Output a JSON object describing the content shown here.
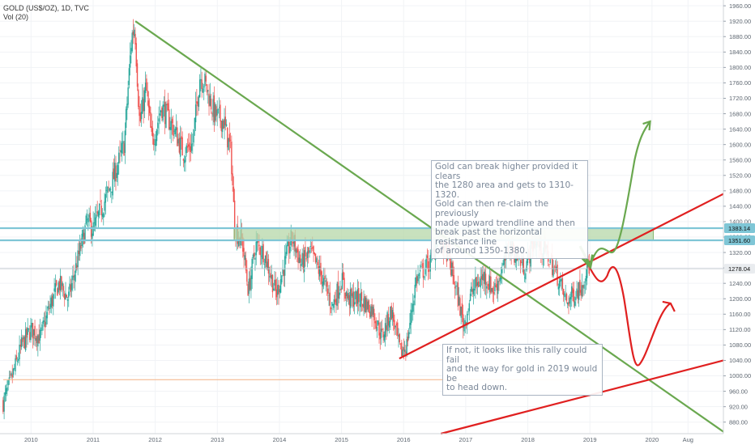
{
  "header": {
    "title": "GOLD (US$/OZ), 1D, TVC",
    "volume_label": "Vol (20)"
  },
  "chart_data": {
    "type": "candlestick",
    "title": "GOLD (US$/OZ), 1D, TVC",
    "x_ticks": [
      "2010",
      "2011",
      "2012",
      "2013",
      "2014",
      "2015",
      "2016",
      "2017",
      "2018",
      "2019",
      "2020",
      "Aug"
    ],
    "y_ticks": [
      880,
      920,
      960,
      1000,
      1040,
      1080,
      1120,
      1160,
      1200,
      1240,
      1280,
      1320,
      1360,
      1400,
      1440,
      1480,
      1520,
      1560,
      1600,
      1640,
      1680,
      1720,
      1760,
      1800,
      1840,
      1880,
      1920,
      1960
    ],
    "ylim": [
      850,
      1975
    ],
    "xlim": [
      2009.5,
      2021.15
    ],
    "price_path": [
      [
        2009.55,
        930
      ],
      [
        2009.7,
        1000
      ],
      [
        2009.85,
        1080
      ],
      [
        2010.0,
        1120
      ],
      [
        2010.15,
        1100
      ],
      [
        2010.3,
        1180
      ],
      [
        2010.45,
        1240
      ],
      [
        2010.6,
        1200
      ],
      [
        2010.75,
        1300
      ],
      [
        2010.9,
        1400
      ],
      [
        2011.0,
        1380
      ],
      [
        2011.1,
        1420
      ],
      [
        2011.3,
        1500
      ],
      [
        2011.5,
        1600
      ],
      [
        2011.62,
        1880
      ],
      [
        2011.67,
        1910
      ],
      [
        2011.75,
        1650
      ],
      [
        2011.85,
        1750
      ],
      [
        2011.95,
        1600
      ],
      [
        2012.1,
        1700
      ],
      [
        2012.3,
        1640
      ],
      [
        2012.45,
        1580
      ],
      [
        2012.6,
        1600
      ],
      [
        2012.72,
        1780
      ],
      [
        2012.8,
        1760
      ],
      [
        2012.95,
        1680
      ],
      [
        2013.1,
        1660
      ],
      [
        2013.22,
        1580
      ],
      [
        2013.28,
        1380
      ],
      [
        2013.4,
        1350
      ],
      [
        2013.5,
        1220
      ],
      [
        2013.62,
        1340
      ],
      [
        2013.75,
        1320
      ],
      [
        2013.95,
        1210
      ],
      [
        2014.1,
        1300
      ],
      [
        2014.2,
        1360
      ],
      [
        2014.35,
        1290
      ],
      [
        2014.5,
        1320
      ],
      [
        2014.7,
        1250
      ],
      [
        2014.85,
        1180
      ],
      [
        2015.0,
        1250
      ],
      [
        2015.1,
        1200
      ],
      [
        2015.3,
        1200
      ],
      [
        2015.5,
        1170
      ],
      [
        2015.65,
        1100
      ],
      [
        2015.8,
        1170
      ],
      [
        2015.95,
        1060
      ],
      [
        2016.05,
        1080
      ],
      [
        2016.2,
        1250
      ],
      [
        2016.45,
        1300
      ],
      [
        2016.55,
        1370
      ],
      [
        2016.7,
        1320
      ],
      [
        2016.85,
        1220
      ],
      [
        2016.97,
        1130
      ],
      [
        2017.1,
        1220
      ],
      [
        2017.3,
        1260
      ],
      [
        2017.45,
        1220
      ],
      [
        2017.6,
        1280
      ],
      [
        2017.7,
        1340
      ],
      [
        2017.95,
        1280
      ],
      [
        2018.1,
        1350
      ],
      [
        2018.3,
        1320
      ],
      [
        2018.5,
        1250
      ],
      [
        2018.62,
        1190
      ],
      [
        2018.72,
        1210
      ],
      [
        2018.85,
        1230
      ],
      [
        2018.95,
        1280
      ],
      [
        2019.0,
        1283
      ]
    ],
    "levels": [
      {
        "price": 1383.14,
        "label": "1383.14"
      },
      {
        "price": 1351.6,
        "label": "1351.60"
      },
      {
        "price": 1278.04,
        "label": "1278.04"
      }
    ],
    "colors": {
      "up_candle": "#26a69a",
      "down_candle": "#ef5350",
      "downtrend_line": "#6aa84f",
      "uptrend_line": "#e02020",
      "resistance_zone": "#b6d7a8",
      "horizontal_lines": "#7fc6d6",
      "support_line": "#f4b183",
      "bullish_path": "#6aa84f",
      "bearish_path": "#e02020"
    }
  },
  "annotations": {
    "bullish_note": "Gold can break higher provided it clears\nthe 1280 area and gets to 1310-1320.\nGold can then re-claim the previously\nmade upward trendline and then\nbreak past the horizontal resistance line\nof around 1350-1380.",
    "bearish_note": "If not, it looks like this rally could fail\nand the way for gold in 2019 would be\nto head down."
  }
}
